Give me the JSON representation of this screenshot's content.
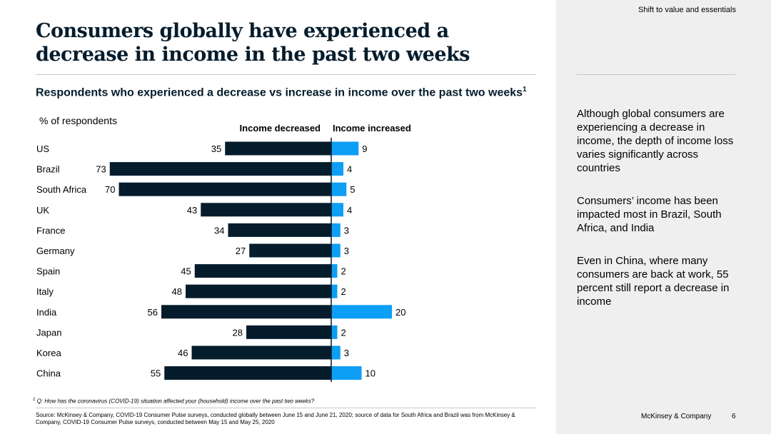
{
  "header": {
    "tagline": "Shift to value and essentials"
  },
  "title": "Consumers globally have experienced a decrease in income in the past two weeks",
  "subtitle": "Respondents who experienced a decrease vs increase in income over the past two weeks",
  "subtitle_footnote_marker": "1",
  "colors": {
    "decreased": "#051c2c",
    "increased": "#0d9ef5",
    "axis": "#051c2c"
  },
  "chart_data": {
    "type": "bar",
    "orientation": "horizontal-diverging",
    "unit_label": "% of respondents",
    "categories": [
      "US",
      "Brazil",
      "South Africa",
      "UK",
      "France",
      "Germany",
      "Spain",
      "Italy",
      "India",
      "Japan",
      "Korea",
      "China"
    ],
    "series": [
      {
        "name": "Income decreased",
        "values": [
          35,
          73,
          70,
          43,
          34,
          27,
          45,
          48,
          56,
          28,
          46,
          55
        ]
      },
      {
        "name": "Income increased",
        "values": [
          9,
          4,
          5,
          4,
          3,
          3,
          2,
          2,
          20,
          2,
          3,
          10
        ]
      }
    ]
  },
  "sidebar": {
    "points": [
      "Although global consumers are experiencing a decrease in income, the depth of income loss varies significantly across countries",
      "Consumers’ income has been impacted most in Brazil, South Africa, and India",
      "Even in China, where many consumers are back at work, 55 percent still report a decrease in income"
    ]
  },
  "footnote": {
    "marker": "1",
    "text": "Q: How has the coronavirus (COVID-19) situation affected your (household) income over the past two weeks?"
  },
  "source": "Source: McKinsey & Company, COVID-19 Consumer Pulse surveys, conducted globally between June 15 and June 21, 2020; source of data for South Africa and Brazil was from McKinsey & Company, COVID-19 Consumer Pulse surveys, conducted between May 15 and May 25, 2020",
  "footer": {
    "brand": "McKinsey & Company",
    "page_number": "6"
  }
}
